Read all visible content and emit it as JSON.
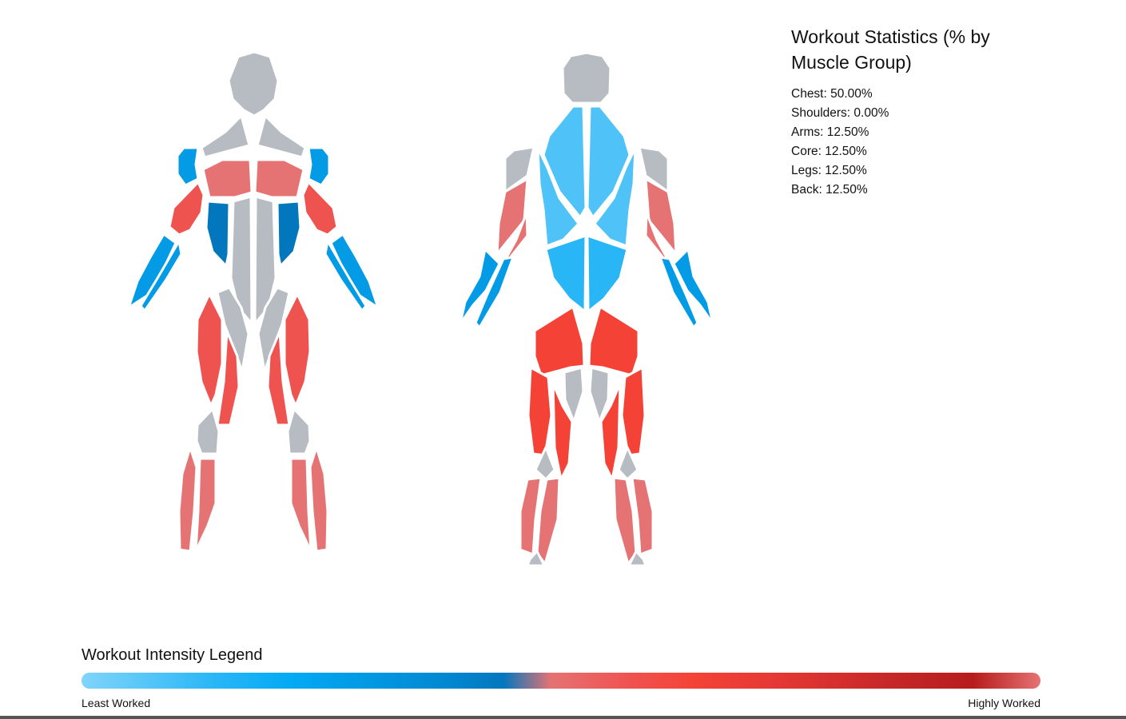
{
  "colors": {
    "neutral": "#b7bcc2",
    "very_light_blue": "#4fc3f7",
    "light_blue": "#29b6f6",
    "blue": "#039be5",
    "dark_blue": "#0277bd",
    "light_red": "#e57373",
    "red": "#ef5350",
    "strong_red": "#f44336",
    "highlight": "#ffffff"
  },
  "muscles": [
    {
      "name": "front-head",
      "group": "none",
      "intensity": "neutral"
    },
    {
      "name": "front-trapezius",
      "group": "back",
      "intensity": "neutral"
    },
    {
      "name": "front-deltoid",
      "group": "shoulders",
      "intensity": "blue"
    },
    {
      "name": "chest-pectorals",
      "group": "chest",
      "intensity": "light_red"
    },
    {
      "name": "biceps",
      "group": "arms",
      "intensity": "red"
    },
    {
      "name": "serratus-obliques",
      "group": "core",
      "intensity": "dark_blue"
    },
    {
      "name": "abdominals",
      "group": "core",
      "intensity": "neutral"
    },
    {
      "name": "forearms",
      "group": "arms",
      "intensity": "blue"
    },
    {
      "name": "hip-adductors",
      "group": "legs",
      "intensity": "neutral"
    },
    {
      "name": "quadriceps",
      "group": "legs",
      "intensity": "red"
    },
    {
      "name": "knees",
      "group": "none",
      "intensity": "neutral"
    },
    {
      "name": "front-calves",
      "group": "legs",
      "intensity": "light_red"
    },
    {
      "name": "back-head",
      "group": "none",
      "intensity": "neutral"
    },
    {
      "name": "upper-back",
      "group": "back",
      "intensity": "very_light_blue"
    },
    {
      "name": "lower-back",
      "group": "back",
      "intensity": "light_blue"
    },
    {
      "name": "rear-deltoid",
      "group": "shoulders",
      "intensity": "neutral"
    },
    {
      "name": "triceps",
      "group": "arms",
      "intensity": "light_red"
    },
    {
      "name": "back-forearms",
      "group": "arms",
      "intensity": "blue"
    },
    {
      "name": "glutes",
      "group": "legs",
      "intensity": "strong_red"
    },
    {
      "name": "hamstrings",
      "group": "legs",
      "intensity": "strong_red"
    },
    {
      "name": "inner-thigh",
      "group": "legs",
      "intensity": "neutral"
    },
    {
      "name": "back-knees",
      "group": "none",
      "intensity": "neutral"
    },
    {
      "name": "back-calves",
      "group": "legs",
      "intensity": "light_red"
    },
    {
      "name": "heels",
      "group": "none",
      "intensity": "neutral"
    }
  ],
  "stats": {
    "title": "Workout Statistics (% by Muscle Group)",
    "items": [
      {
        "label": "Chest",
        "value": "50.00%"
      },
      {
        "label": "Shoulders",
        "value": "0.00%"
      },
      {
        "label": "Arms",
        "value": "12.50%"
      },
      {
        "label": "Core",
        "value": "12.50%"
      },
      {
        "label": "Legs",
        "value": "12.50%"
      },
      {
        "label": "Back",
        "value": "12.50%"
      }
    ]
  },
  "legend": {
    "title": "Workout Intensity Legend",
    "min_label": "Least Worked",
    "max_label": "Highly Worked"
  }
}
